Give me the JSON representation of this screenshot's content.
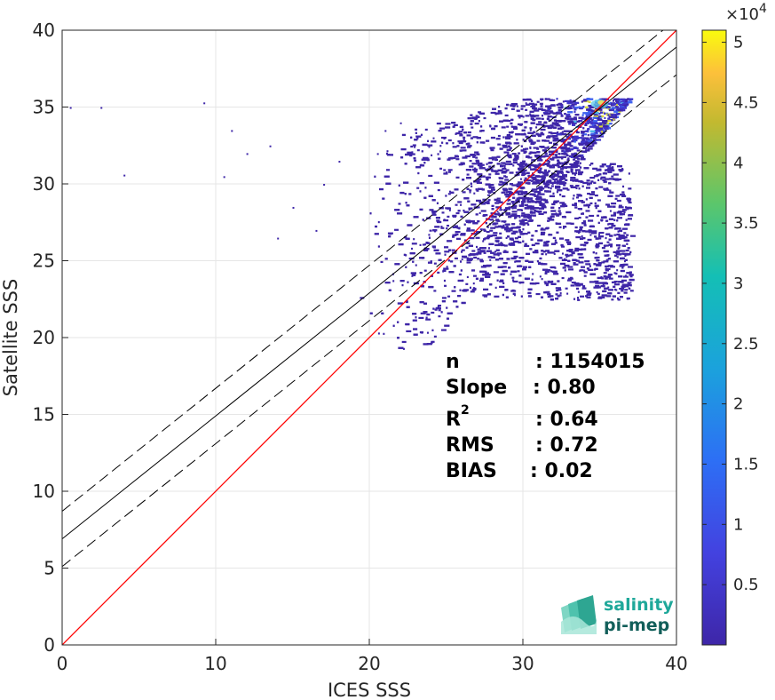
{
  "chart_data": {
    "type": "heatmap",
    "title": "",
    "xlabel": "ICES SSS",
    "ylabel": "Satellite SSS",
    "xlim": [
      0,
      40
    ],
    "ylim": [
      0,
      40
    ],
    "xticks": [
      "0",
      "10",
      "20",
      "30",
      "40"
    ],
    "yticks": [
      "0",
      "5",
      "10",
      "15",
      "20",
      "25",
      "30",
      "35",
      "40"
    ],
    "grid": true,
    "colormap": "parula",
    "colorbar": {
      "range": [
        0,
        51000
      ],
      "ticks": [
        "0.5",
        "1",
        "1.5",
        "2",
        "2.5",
        "3",
        "3.5",
        "4",
        "4.5",
        "5"
      ],
      "tick_values": [
        5000,
        10000,
        15000,
        20000,
        25000,
        30000,
        35000,
        40000,
        45000,
        50000
      ],
      "exponent_base": "×10",
      "exponent_power": "4"
    },
    "reference_line": {
      "slope": 1,
      "intercept": 0,
      "color": "#ff0000"
    },
    "fit_line": {
      "slope": 0.8,
      "intercept": 6.9,
      "color": "#000000"
    },
    "fit_bounds_offset": 1.8,
    "density_region": {
      "x_range": [
        19,
        37
      ],
      "y_range": [
        19,
        35.6
      ],
      "peak": [
        35,
        35
      ]
    },
    "stats": {
      "n_label": "n",
      "n_value": ": 1154015",
      "slope_label": "Slope",
      "slope_value": ": 0.80",
      "r_label": "R",
      "r_sup": "2",
      "r_value": ": 0.64",
      "rms_label": "RMS",
      "rms_value": ": 0.72",
      "bias_label": "BIAS",
      "bias_value": ": 0.02"
    },
    "colors": {
      "low": "#3e26a8",
      "mid": "#2d93e0",
      "high": "#f9fb0e"
    }
  },
  "logo": {
    "line1": "salinity",
    "line2": "pi-mep",
    "color1": "#1fa89a",
    "color2": "#125f5a"
  }
}
